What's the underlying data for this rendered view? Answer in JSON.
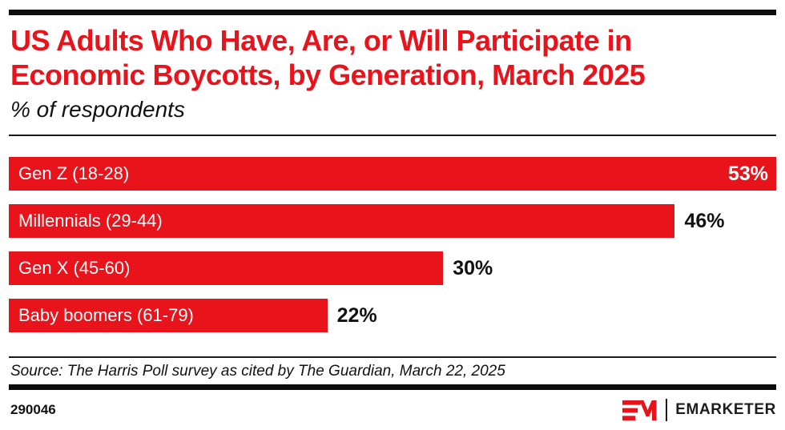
{
  "page": {
    "accent_red": "#e8131b",
    "text_black": "#111111"
  },
  "header": {
    "title_line1": "US Adults Who Have, Are, or Will Participate in",
    "title_line2": "Economic Boycotts, by Generation, March 2025",
    "subtitle": "% of respondents"
  },
  "chart_data": {
    "type": "bar",
    "orientation": "horizontal",
    "title": "US Adults Who Have, Are, or Will Participate in Economic Boycotts, by Generation, March 2025",
    "subtitle": "% of respondents",
    "categories": [
      "Gen Z (18-28)",
      "Millennials (29-44)",
      "Gen X (45-60)",
      "Baby boomers (61-79)"
    ],
    "values": [
      53,
      46,
      30,
      22
    ],
    "value_labels": [
      "53%",
      "46%",
      "30%",
      "22%"
    ],
    "value_inside": [
      true,
      false,
      false,
      false
    ],
    "xlim": [
      0,
      53
    ],
    "bar_color": "#e8131b",
    "grid": false,
    "legend": false
  },
  "footer": {
    "source": "Source: The Harris Poll survey as cited by The Guardian, March 22, 2025",
    "chart_id": "290046",
    "brand": "EMARKETER"
  }
}
